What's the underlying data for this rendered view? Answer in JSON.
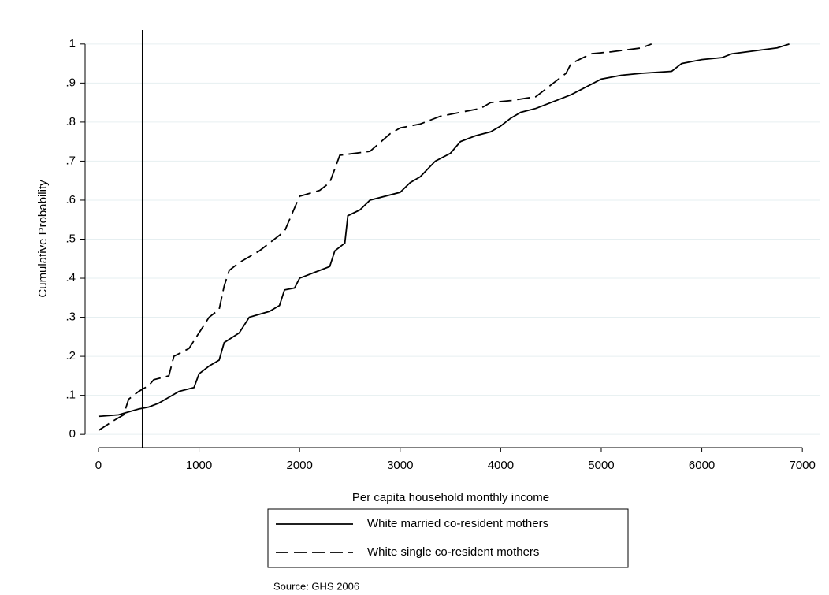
{
  "chart_data": {
    "type": "line",
    "x_label": "Per capita household monthly income",
    "y_label": "Cumulative Probability",
    "note": "Source: GHS 2006",
    "xlim": [
      -133,
      7171
    ],
    "ylim": [
      -0.034,
      1.036
    ],
    "xticks": [
      0,
      1000,
      2000,
      3000,
      4000,
      5000,
      6000,
      7000
    ],
    "yticks": [
      0,
      {
        "value": 0.1,
        "label": ".1"
      },
      {
        "value": 0.2,
        "label": ".2"
      },
      {
        "value": 0.3,
        "label": ".3"
      },
      {
        "value": 0.4,
        "label": ".4"
      },
      {
        "value": 0.5,
        "label": ".5"
      },
      {
        "value": 0.6,
        "label": ".6"
      },
      {
        "value": 0.7,
        "label": ".7"
      },
      {
        "value": 0.8,
        "label": ".8"
      },
      {
        "value": 0.9,
        "label": ".9"
      },
      1
    ],
    "grid": true,
    "grid_color": "#e6eff1",
    "reference_line_x": 439,
    "series": [
      {
        "name": "White married co-resident mothers",
        "color": "#000000",
        "line_style": "solid",
        "x": [
          0,
          200,
          400,
          500,
          600,
          700,
          800,
          950,
          1000,
          1100,
          1200,
          1250,
          1400,
          1500,
          1700,
          1800,
          1850,
          1950,
          2000,
          2200,
          2300,
          2350,
          2450,
          2480,
          2600,
          2700,
          3000,
          3100,
          3200,
          3350,
          3500,
          3600,
          3750,
          3900,
          4000,
          4100,
          4200,
          4350,
          4550,
          4700,
          4850,
          5000,
          5200,
          5400,
          5700,
          5800,
          6000,
          6200,
          6300,
          6600,
          6750,
          6870
        ],
        "values": [
          0.046,
          0.05,
          0.065,
          0.07,
          0.08,
          0.095,
          0.11,
          0.12,
          0.155,
          0.175,
          0.19,
          0.235,
          0.26,
          0.3,
          0.315,
          0.33,
          0.37,
          0.375,
          0.4,
          0.42,
          0.43,
          0.47,
          0.49,
          0.56,
          0.575,
          0.6,
          0.62,
          0.645,
          0.66,
          0.7,
          0.72,
          0.75,
          0.765,
          0.775,
          0.79,
          0.81,
          0.825,
          0.835,
          0.855,
          0.87,
          0.89,
          0.91,
          0.92,
          0.925,
          0.93,
          0.95,
          0.96,
          0.965,
          0.975,
          0.985,
          0.99,
          1.0
        ]
      },
      {
        "name": "White single co-resident mothers",
        "color": "#000000",
        "line_style": "dashed",
        "x": [
          0,
          150,
          250,
          300,
          400,
          500,
          550,
          700,
          750,
          900,
          1000,
          1100,
          1200,
          1250,
          1300,
          1400,
          1600,
          1700,
          1850,
          2000,
          2200,
          2300,
          2400,
          2700,
          2900,
          3000,
          3200,
          3400,
          3600,
          3800,
          3900,
          4100,
          4350,
          4500,
          4650,
          4700,
          4900,
          5100,
          5400,
          5500
        ],
        "values": [
          0.01,
          0.035,
          0.05,
          0.09,
          0.11,
          0.125,
          0.14,
          0.15,
          0.2,
          0.22,
          0.26,
          0.3,
          0.32,
          0.38,
          0.42,
          0.44,
          0.47,
          0.49,
          0.52,
          0.61,
          0.625,
          0.645,
          0.715,
          0.725,
          0.77,
          0.785,
          0.795,
          0.815,
          0.825,
          0.835,
          0.85,
          0.855,
          0.865,
          0.895,
          0.925,
          0.95,
          0.975,
          0.98,
          0.99,
          1.0
        ]
      }
    ]
  }
}
